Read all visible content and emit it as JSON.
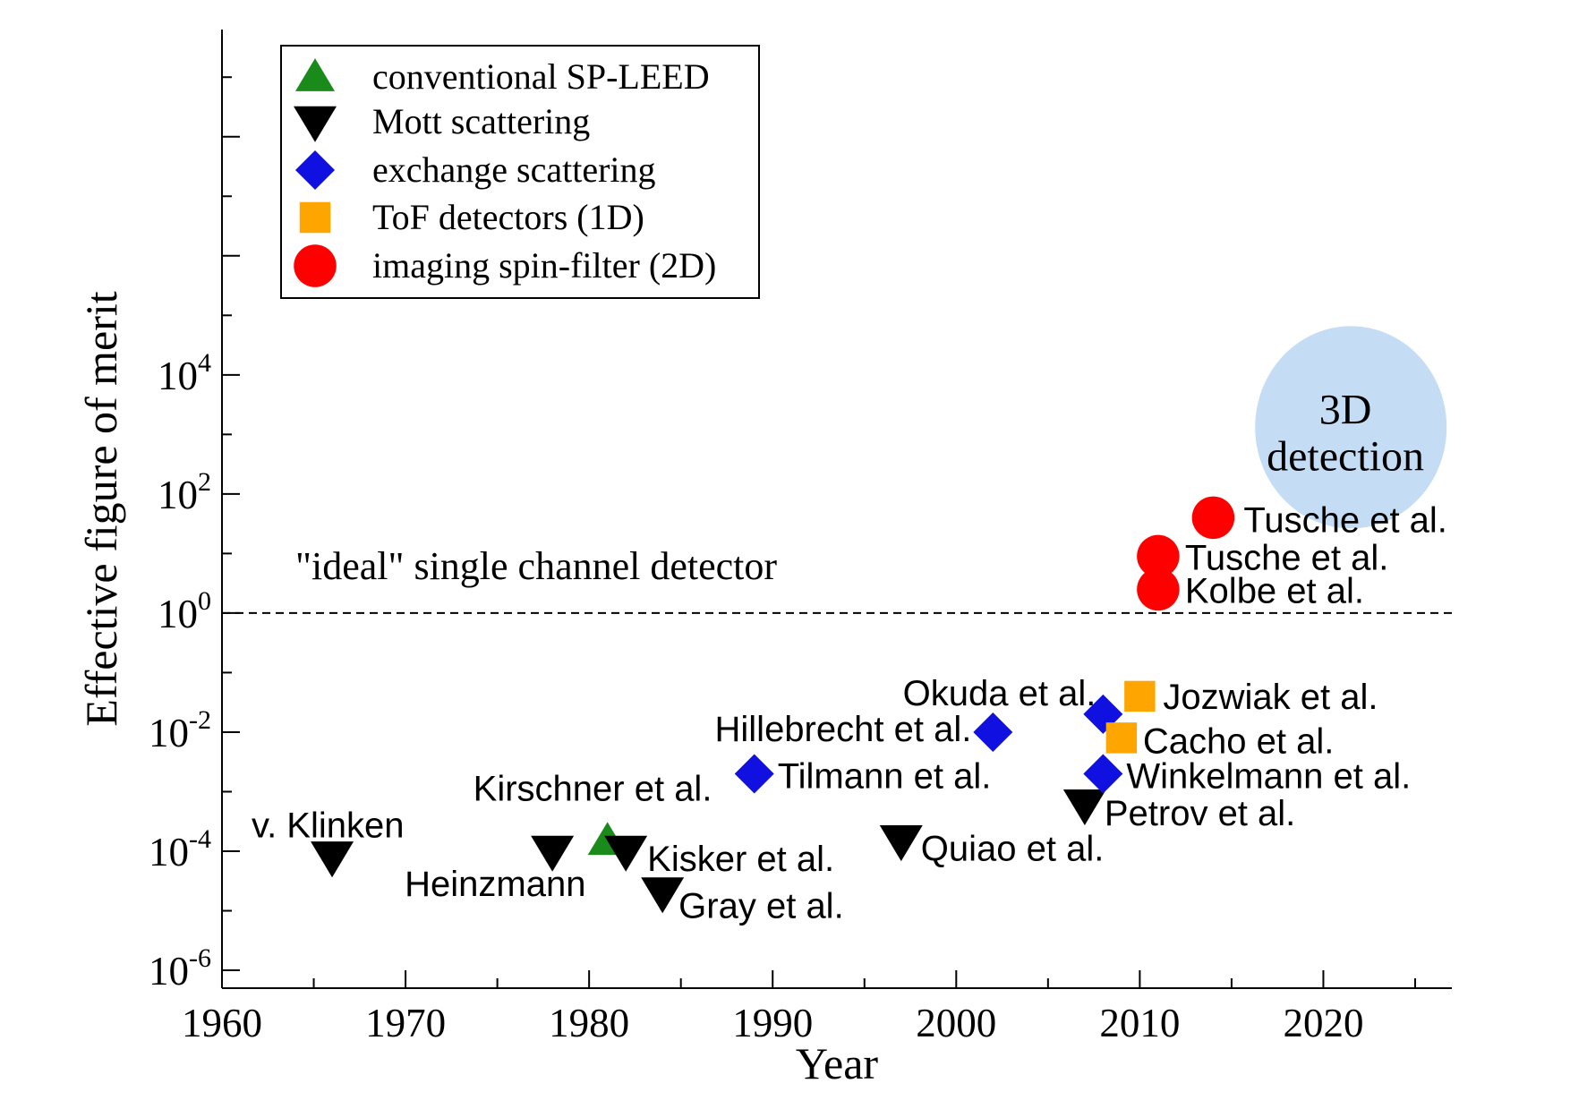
{
  "chart_data": {
    "type": "scatter",
    "title": "",
    "xlabel": "Year",
    "ylabel": "Effective figure of merit",
    "xlim": [
      1960,
      2027
    ],
    "ylim_log10": [
      -6.3,
      9.8
    ],
    "y_scale": "log",
    "x_ticks": [
      1960,
      1970,
      1980,
      1990,
      2000,
      2010,
      2020
    ],
    "y_tick_exponents": [
      -6,
      -4,
      -2,
      0,
      2,
      4
    ],
    "y_tick_base": "10",
    "grid": false,
    "legend": {
      "placement": "top-left",
      "entries": [
        {
          "label": "conventional SP-LEED",
          "marker": "triangle-up",
          "color": "#1a8a1a"
        },
        {
          "label": "Mott scattering",
          "marker": "triangle-down",
          "color": "#000000"
        },
        {
          "label": "exchange scattering",
          "marker": "diamond",
          "color": "#1010e0"
        },
        {
          "label": "ToF detectors (1D)",
          "marker": "square",
          "color": "#ffa500"
        },
        {
          "label": "imaging spin-filter (2D)",
          "marker": "circle",
          "color": "#ff0000"
        }
      ]
    },
    "reference_line": {
      "y": 1,
      "label": "\"ideal\" single channel detector"
    },
    "region_annotation": {
      "lines": [
        "3D",
        "detection"
      ],
      "color": "#c5dcf5"
    },
    "series": [
      {
        "name": "conventional SP-LEED",
        "marker": "triangle-up",
        "color": "#1a8a1a",
        "points": [
          {
            "x": 1981,
            "y": 0.00015,
            "label": "Kirschner et al."
          }
        ]
      },
      {
        "name": "Mott scattering",
        "marker": "triangle-down",
        "color": "#000000",
        "points": [
          {
            "x": 1966,
            "y": 8e-05,
            "label": "v. Klinken"
          },
          {
            "x": 1978,
            "y": 0.0001,
            "label": "Heinzmann"
          },
          {
            "x": 1982,
            "y": 0.0001,
            "label": "Kisker et al."
          },
          {
            "x": 1984,
            "y": 2e-05,
            "label": "Gray et al."
          },
          {
            "x": 1997,
            "y": 0.00015,
            "label": "Quiao et al."
          },
          {
            "x": 2007,
            "y": 0.0006,
            "label": "Petrov et al."
          }
        ]
      },
      {
        "name": "exchange scattering",
        "marker": "diamond",
        "color": "#1010e0",
        "points": [
          {
            "x": 1989,
            "y": 0.002,
            "label": "Tilmann et al."
          },
          {
            "x": 2002,
            "y": 0.01,
            "label": "Hillebrecht et al."
          },
          {
            "x": 2008,
            "y": 0.02,
            "label": "Okuda et al."
          },
          {
            "x": 2008,
            "y": 0.002,
            "label": "Winkelmann et al."
          }
        ]
      },
      {
        "name": "ToF detectors (1D)",
        "marker": "square",
        "color": "#ffa500",
        "points": [
          {
            "x": 2010,
            "y": 0.04,
            "label": "Jozwiak et al."
          },
          {
            "x": 2009,
            "y": 0.008,
            "label": "Cacho et al."
          }
        ]
      },
      {
        "name": "imaging spin-filter (2D)",
        "marker": "circle",
        "color": "#ff0000",
        "points": [
          {
            "x": 2014,
            "y": 40,
            "label": "Tusche et al."
          },
          {
            "x": 2011,
            "y": 9,
            "label": "Tusche et al."
          },
          {
            "x": 2011,
            "y": 2.5,
            "label": "Kolbe et al."
          }
        ]
      }
    ]
  }
}
